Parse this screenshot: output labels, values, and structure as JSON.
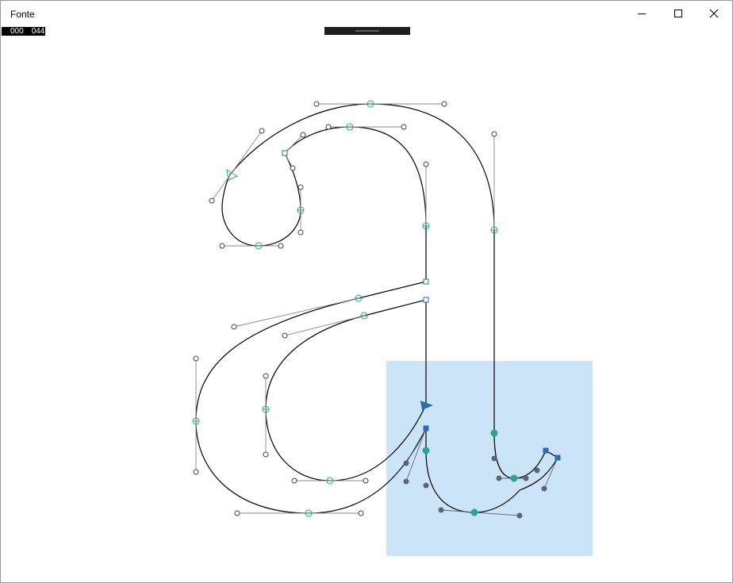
{
  "app": {
    "title": "Fonte"
  },
  "counter": {
    "left": "000",
    "right": "044"
  },
  "icons": {
    "minimize": "minimize-icon",
    "maximize": "maximize-icon",
    "close": "close-icon"
  },
  "colors": {
    "selection_fill": "#cce4f7",
    "on_curve_point": "#2aa58a",
    "corner_point": "#2b6cb5",
    "handle": "#555555",
    "selected_handle": "#5b6576",
    "outline": "#000000"
  }
}
